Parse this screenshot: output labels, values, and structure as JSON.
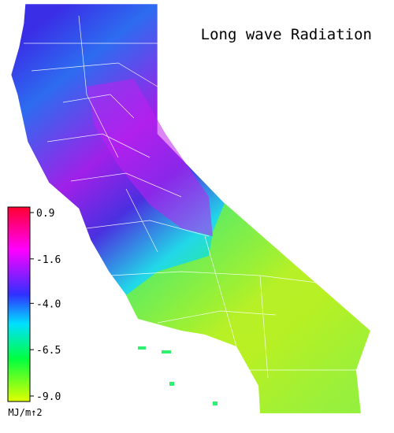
{
  "title": "Long wave Radiation",
  "colorbar": {
    "lim": [
      -9.0,
      0.9
    ],
    "ticks": [
      0.9,
      -1.6,
      {
        "value": -4.0,
        "label": "-4.0"
      },
      -6.5,
      {
        "value": -9.0,
        "label": "-9.0"
      }
    ],
    "unit": "MJ/m↑2"
  }
}
